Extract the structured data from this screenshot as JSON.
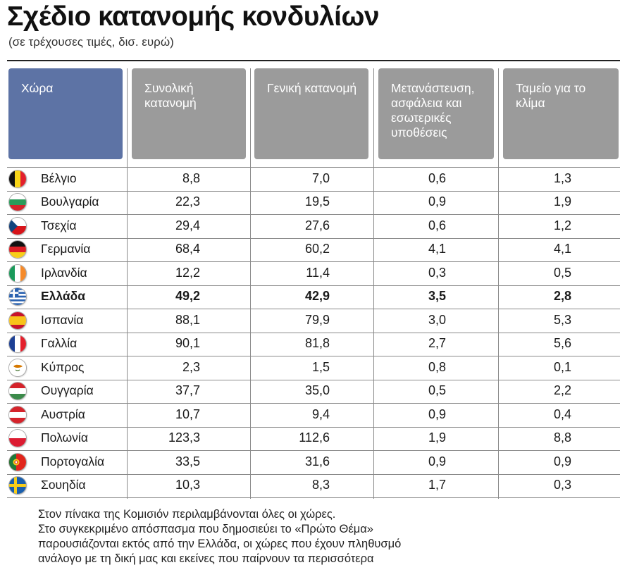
{
  "title": "Σχέδιο κατανομής κονδυλίων",
  "subtitle": "(σε τρέχουσες τιμές, δισ. ευρώ)",
  "chart_data": {
    "type": "table",
    "columns": [
      "Χώρα",
      "Συνολική κατανομή",
      "Γενική κατανομή",
      "Μετανάστευση, ασφάλεια και εσωτερικές υποθέσεις",
      "Ταμείο για το κλίμα"
    ],
    "rows": [
      {
        "country": "Βέλγιο",
        "flag": "belgium-flag-icon",
        "total": "8,8",
        "general": "7,0",
        "migration": "0,6",
        "climate": "1,3",
        "bold": false
      },
      {
        "country": "Βουλγαρία",
        "flag": "bulgaria-flag-icon",
        "total": "22,3",
        "general": "19,5",
        "migration": "0,9",
        "climate": "1,9",
        "bold": false
      },
      {
        "country": "Τσεχία",
        "flag": "czechia-flag-icon",
        "total": "29,4",
        "general": "27,6",
        "migration": "0,6",
        "climate": "1,2",
        "bold": false
      },
      {
        "country": "Γερμανία",
        "flag": "germany-flag-icon",
        "total": "68,4",
        "general": "60,2",
        "migration": "4,1",
        "climate": "4,1",
        "bold": false
      },
      {
        "country": "Ιρλανδία",
        "flag": "ireland-flag-icon",
        "total": "12,2",
        "general": "11,4",
        "migration": "0,3",
        "climate": "0,5",
        "bold": false
      },
      {
        "country": "Ελλάδα",
        "flag": "greece-flag-icon",
        "total": "49,2",
        "general": "42,9",
        "migration": "3,5",
        "climate": "2,8",
        "bold": true
      },
      {
        "country": "Ισπανία",
        "flag": "spain-flag-icon",
        "total": "88,1",
        "general": "79,9",
        "migration": "3,0",
        "climate": "5,3",
        "bold": false
      },
      {
        "country": "Γαλλία",
        "flag": "france-flag-icon",
        "total": "90,1",
        "general": "81,8",
        "migration": "2,7",
        "climate": "5,6",
        "bold": false
      },
      {
        "country": "Κύπρος",
        "flag": "cyprus-flag-icon",
        "total": "2,3",
        "general": "1,5",
        "migration": "0,8",
        "climate": "0,1",
        "bold": false
      },
      {
        "country": "Ουγγαρία",
        "flag": "hungary-flag-icon",
        "total": "37,7",
        "general": "35,0",
        "migration": "0,5",
        "climate": "2,2",
        "bold": false
      },
      {
        "country": "Αυστρία",
        "flag": "austria-flag-icon",
        "total": "10,7",
        "general": "9,4",
        "migration": "0,9",
        "climate": "0,4",
        "bold": false
      },
      {
        "country": "Πολωνία",
        "flag": "poland-flag-icon",
        "total": "123,3",
        "general": "112,6",
        "migration": "1,9",
        "climate": "8,8",
        "bold": false
      },
      {
        "country": "Πορτογαλία",
        "flag": "portugal-flag-icon",
        "total": "33,5",
        "general": "31,6",
        "migration": "0,9",
        "climate": "0,9",
        "bold": false
      },
      {
        "country": "Σουηδία",
        "flag": "sweden-flag-icon",
        "total": "10,3",
        "general": "8,3",
        "migration": "1,7",
        "climate": "0,3",
        "bold": false
      }
    ]
  },
  "note": {
    "line1": "Στον πίνακα της Κομισιόν περιλαμβάνονται όλες οι χώρες.",
    "line2": "Στο συγκεκριμένο απόσπασμα που δημοσιεύει το «Πρώτο Θέμα»",
    "line3": "παρουσιάζονται εκτός από την Ελλάδα, οι χώρες που έχουν πληθυσμό",
    "line4": "ανάλογο με τη δική μας και εκείνες που παίρνουν τα περισσότερα"
  }
}
